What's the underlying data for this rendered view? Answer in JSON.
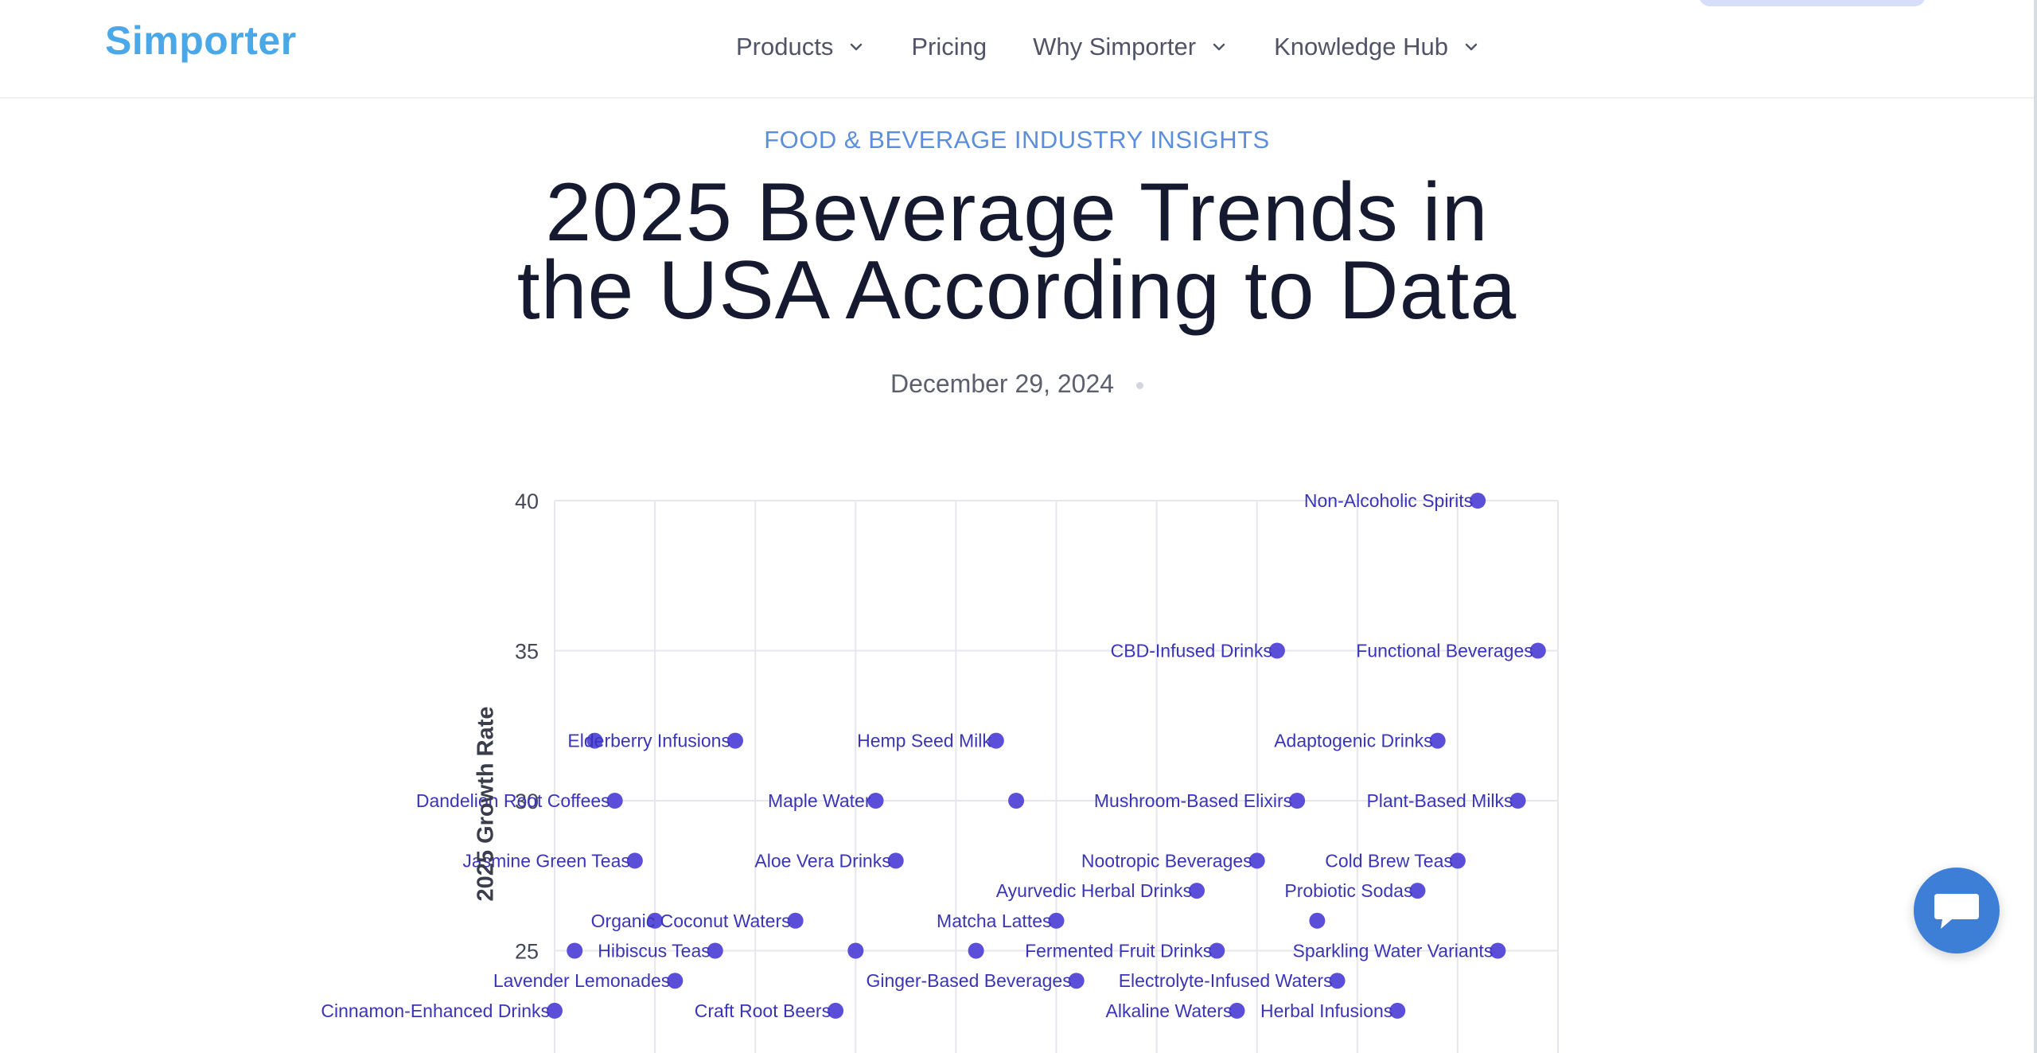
{
  "header": {
    "logo": "Simporter",
    "nav": [
      {
        "label": "Products",
        "has_dropdown": true
      },
      {
        "label": "Pricing",
        "has_dropdown": false
      },
      {
        "label": "Why Simporter",
        "has_dropdown": true
      },
      {
        "label": "Knowledge Hub",
        "has_dropdown": true
      }
    ]
  },
  "article": {
    "kicker": "FOOD & BEVERAGE INDUSTRY INSIGHTS",
    "title_line1": "2025 Beverage Trends in",
    "title_line2": "the USA According to Data",
    "date": "December 29, 2024"
  },
  "chart_data": {
    "type": "scatter",
    "ylabel": "2025 Growth Rate",
    "xlabel": "",
    "ylim": [
      23,
      40
    ],
    "yticks": [
      25,
      30,
      35,
      40
    ],
    "x_range": [
      0,
      10
    ],
    "grid": true,
    "point_color": "#5b4fd9",
    "label_color": "#3a35b8",
    "points": [
      {
        "label": "Non-Alcoholic Spirits",
        "x": 9.2,
        "y": 40
      },
      {
        "label": "CBD-Infused Drinks",
        "x": 7.2,
        "y": 35
      },
      {
        "label": "Functional Beverages",
        "x": 9.8,
        "y": 35
      },
      {
        "label": "",
        "x": 0.4,
        "y": 32
      },
      {
        "label": "Elderberry Infusions",
        "x": 1.8,
        "y": 32
      },
      {
        "label": "Hemp Seed Milk",
        "x": 4.4,
        "y": 32
      },
      {
        "label": "Adaptogenic Drinks",
        "x": 8.8,
        "y": 32
      },
      {
        "label": "Dandelion Root Coffees",
        "x": 0.6,
        "y": 30
      },
      {
        "label": "Maple Water",
        "x": 3.2,
        "y": 30
      },
      {
        "label": "",
        "x": 4.6,
        "y": 30
      },
      {
        "label": "Mushroom-Based Elixirs",
        "x": 7.4,
        "y": 30
      },
      {
        "label": "Plant-Based Milks",
        "x": 9.6,
        "y": 30
      },
      {
        "label": "Jasmine Green Teas",
        "x": 0.8,
        "y": 28
      },
      {
        "label": "Aloe Vera Drinks",
        "x": 3.4,
        "y": 28
      },
      {
        "label": "Nootropic Beverages",
        "x": 7.0,
        "y": 28
      },
      {
        "label": "Cold Brew Teas",
        "x": 9.0,
        "y": 28
      },
      {
        "label": "Ayurvedic Herbal Drinks",
        "x": 6.4,
        "y": 27
      },
      {
        "label": "Probiotic Sodas",
        "x": 8.6,
        "y": 27
      },
      {
        "label": "",
        "x": 1.0,
        "y": 26
      },
      {
        "label": "Organic Coconut Waters",
        "x": 2.4,
        "y": 26
      },
      {
        "label": "Matcha Lattes",
        "x": 5.0,
        "y": 26
      },
      {
        "label": "",
        "x": 7.6,
        "y": 26
      },
      {
        "label": "",
        "x": 0.2,
        "y": 25
      },
      {
        "label": "Hibiscus Teas",
        "x": 1.6,
        "y": 25
      },
      {
        "label": "",
        "x": 3.0,
        "y": 25
      },
      {
        "label": "",
        "x": 4.2,
        "y": 25
      },
      {
        "label": "Fermented Fruit Drinks",
        "x": 6.6,
        "y": 25
      },
      {
        "label": "Sparkling Water Variants",
        "x": 9.4,
        "y": 25
      },
      {
        "label": "Lavender Lemonades",
        "x": 1.2,
        "y": 24
      },
      {
        "label": "Ginger-Based Beverages",
        "x": 5.2,
        "y": 24
      },
      {
        "label": "Electrolyte-Infused Waters",
        "x": 7.8,
        "y": 24
      },
      {
        "label": "Cinnamon-Enhanced Drinks",
        "x": 0.0,
        "y": 23
      },
      {
        "label": "Craft Root Beers",
        "x": 2.8,
        "y": 23
      },
      {
        "label": "Alkaline Waters",
        "x": 6.8,
        "y": 23
      },
      {
        "label": "Herbal Infusions",
        "x": 8.4,
        "y": 23
      }
    ]
  },
  "chat": {
    "icon": "chat-bubble-icon"
  }
}
